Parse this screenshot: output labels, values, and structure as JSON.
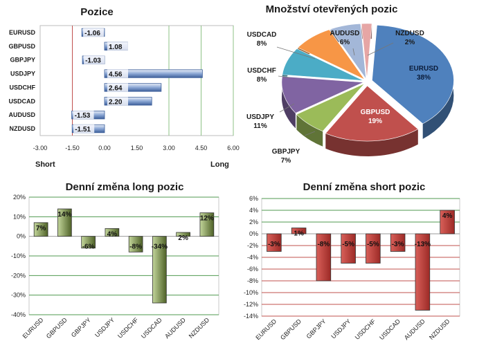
{
  "chart_data": [
    {
      "type": "bar",
      "orientation": "horizontal",
      "title": "Pozice",
      "categories": [
        "EURUSD",
        "GBPUSD",
        "GBPJPY",
        "USDJPY",
        "USDCHF",
        "USDCAD",
        "AUDUSD",
        "NZDUSD"
      ],
      "values": [
        -1.06,
        1.08,
        -1.03,
        4.56,
        2.64,
        2.2,
        -1.53,
        -1.51
      ],
      "value_labels": [
        "-1.06",
        "1.08",
        "-1.03",
        "4.56",
        "2.64",
        "2.20",
        "-1.53",
        "-1.51"
      ],
      "xlim": [
        -3.0,
        6.0
      ],
      "xticks": [
        "-3.00",
        "-1.50",
        "0.00",
        "1.50",
        "3.00",
        "4.50",
        "6.00"
      ],
      "xtick_values": [
        -3,
        -1.5,
        0,
        1.5,
        3,
        4.5,
        6
      ],
      "short_label": "Short",
      "long_label": "Long",
      "colors": {
        "bar": "#4f73b0",
        "bar_light": "#dfe8f6",
        "short_line": "#c0504d",
        "long_line": "#8cc084"
      }
    },
    {
      "type": "pie",
      "title": "Množství otevřených pozic",
      "slices": [
        {
          "label": "EURUSD",
          "value": 38,
          "value_label": "38%",
          "color": "#4f81bd"
        },
        {
          "label": "GBPUSD",
          "value": 19,
          "value_label": "19%",
          "color": "#c0504d"
        },
        {
          "label": "GBPJPY",
          "value": 7,
          "value_label": "7%",
          "color": "#9bbb59"
        },
        {
          "label": "USDJPY",
          "value": 11,
          "value_label": "11%",
          "color": "#8064a2"
        },
        {
          "label": "USDCHF",
          "value": 8,
          "value_label": "8%",
          "color": "#4bacc6"
        },
        {
          "label": "USDCAD",
          "value": 8,
          "value_label": "8%",
          "color": "#f79646"
        },
        {
          "label": "AUDUSD",
          "value": 6,
          "value_label": "6%",
          "color": "#a3b7d8"
        },
        {
          "label": "NZDUSD",
          "value": 2,
          "value_label": "2%",
          "color": "#e6a6a5"
        }
      ]
    },
    {
      "type": "bar",
      "title": "Denní změna long pozic",
      "categories": [
        "EURUSD",
        "GBPUSD",
        "GBPJPY",
        "USDJPY",
        "USDCHF",
        "USDCAD",
        "AUDUSD",
        "NZDUSD"
      ],
      "values": [
        7,
        14,
        -6,
        4,
        -8,
        -34,
        2,
        12
      ],
      "value_labels": [
        "7%",
        "14%",
        "-6%",
        "4%",
        "-8%",
        "-34%",
        "2%",
        "12%"
      ],
      "ylim": [
        -40,
        20
      ],
      "yticks": [
        "20%",
        "10%",
        "0%",
        "-10%",
        "-20%",
        "-30%",
        "-40%"
      ],
      "ytick_values": [
        20,
        10,
        0,
        -10,
        -20,
        -30,
        -40
      ],
      "colors": {
        "bar_dark": "#4f6228",
        "bar_light": "#c3d69b",
        "grid": "#4f9a4f"
      }
    },
    {
      "type": "bar",
      "title": "Denní změna short pozic",
      "categories": [
        "EURUSD",
        "GBPUSD",
        "GBPJPY",
        "USDJPY",
        "USDCHF",
        "USDCAD",
        "AUDUSD",
        "NZDUSD"
      ],
      "values": [
        -3,
        1,
        -8,
        -5,
        -5,
        -3,
        -13,
        4
      ],
      "value_labels": [
        "-3%",
        "1%",
        "-8%",
        "-5%",
        "-5%",
        "-3%",
        "-13%",
        "4%"
      ],
      "ylim": [
        -14,
        6
      ],
      "yticks": [
        "6%",
        "4%",
        "2%",
        "0%",
        "-2%",
        "-4%",
        "-6%",
        "-8%",
        "-10%",
        "-12%",
        "-14%"
      ],
      "ytick_values": [
        6,
        4,
        2,
        0,
        -2,
        -4,
        -6,
        -8,
        -10,
        -12,
        -14
      ],
      "colors": {
        "bar": "#c0504d",
        "grid_pos": "#4f9a4f",
        "grid_neg": "#c0504d"
      }
    }
  ]
}
